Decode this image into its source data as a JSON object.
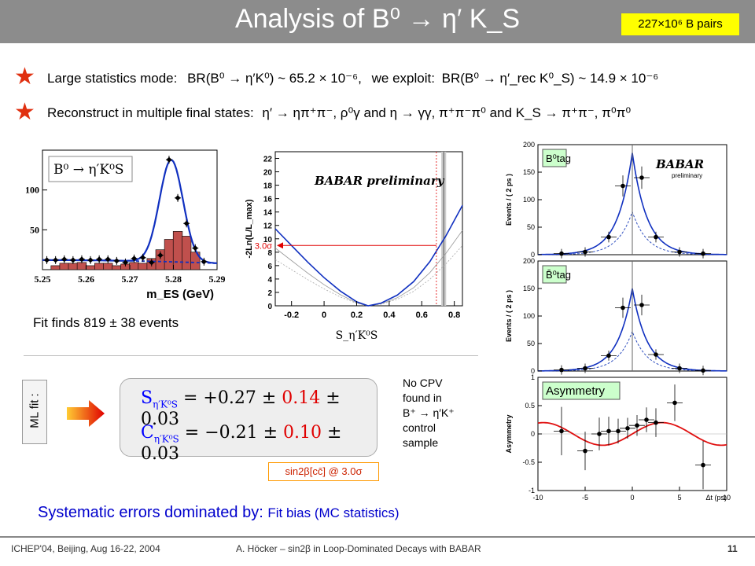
{
  "slide": {
    "title": "Analysis of B⁰ → η′ K_S",
    "badge": "227×10⁶ B pairs",
    "bullet1_label": "Large statistics mode:",
    "bullet1_formula_a": "BR(B⁰ → η′K⁰) ~ 65.2 × 10⁻⁶,",
    "bullet1_exploit": "we exploit:",
    "bullet1_formula_b": "BR(B⁰ → η′_rec K⁰_S) ~ 14.9 × 10⁻⁶",
    "bullet2_label": "Reconstruct in multiple final states:",
    "bullet2_formula": "η′ → ηπ⁺π⁻, ρ⁰γ and η → γγ, π⁺π⁻π⁰ and K_S → π⁺π⁻, π⁰π⁰",
    "fit_finds": "Fit finds 819 ± 38 events",
    "mlfit_label": "ML fit :",
    "result_S_lhs": "S",
    "result_S_sub": "η′K⁰S",
    "result_S_pre": "= +0.27 ± ",
    "result_S_stat": "0.14",
    "result_S_post": " ± 0.03",
    "result_C_lhs": "C",
    "result_C_sub": "η′K⁰S",
    "result_C_pre": "= −0.21 ± ",
    "result_C_stat": "0.10",
    "result_C_post": " ± 0.03",
    "nocpv": [
      "No CPV",
      "found in",
      "B⁺ → η′K⁺",
      "control",
      "sample"
    ],
    "sin2b_tag": "sin2β[cc̄] @ 3.0σ",
    "syst_prefix": "Systematic errors dominated by:",
    "syst_item": "Fit bias (MC statistics)",
    "footer_left": "ICHEP'04, Beijing, Aug 16-22, 2004",
    "footer_center": "A. Höcker – sin2β in Loop-Dominated Decays with BABAR",
    "footer_page": "11"
  },
  "chart_data": [
    {
      "type": "bar",
      "title": "B⁰ → η′K⁰S",
      "xlabel": "m_ES (GeV)",
      "ylabel": "",
      "xlim": [
        5.25,
        5.29
      ],
      "ylim": [
        0,
        150
      ],
      "xticks": [
        "5.25",
        "5.26",
        "5.27",
        "5.28",
        "5.29"
      ],
      "yticks": [
        "50",
        "100"
      ],
      "x": [
        5.251,
        5.253,
        5.255,
        5.257,
        5.259,
        5.261,
        5.263,
        5.265,
        5.267,
        5.269,
        5.271,
        5.273,
        5.275,
        5.277,
        5.279,
        5.281,
        5.283,
        5.285,
        5.287
      ],
      "series": [
        {
          "values": [
            12,
            12,
            13,
            12,
            13,
            12,
            13,
            13,
            11,
            9,
            14,
            15,
            9,
            18,
            138,
            90,
            58,
            27,
            10
          ]
        },
        {
          "values": [
            0,
            5,
            8,
            8,
            9,
            5,
            8,
            8,
            5,
            7,
            9,
            8,
            14,
            25,
            38,
            48,
            42,
            22,
            0
          ]
        }
      ]
    },
    {
      "type": "line",
      "title": "BABAR preliminary",
      "xlabel": "S_η′K⁰S",
      "ylabel": "-2Ln(L/L_max)",
      "xlim": [
        -0.3,
        0.85
      ],
      "ylim": [
        0,
        23
      ],
      "xticks": [
        "-0.2",
        "0",
        "0.2",
        "0.4",
        "0.6",
        "0.8"
      ],
      "yticks": [
        "0",
        "2",
        "4",
        "6",
        "8",
        "10",
        "12",
        "14",
        "16",
        "18",
        "20",
        "22"
      ],
      "annotation": "3.0σ",
      "annotation_y": 9,
      "annotation_x": 0.69,
      "series": [
        {
          "x": [
            -0.3,
            -0.2,
            -0.1,
            0.0,
            0.1,
            0.2,
            0.27,
            0.35,
            0.45,
            0.55,
            0.65,
            0.75,
            0.85
          ],
          "values": [
            11.5,
            9.0,
            6.5,
            4.2,
            2.2,
            0.6,
            0.0,
            0.4,
            1.6,
            3.6,
            6.6,
            10.5,
            15.0
          ]
        }
      ]
    },
    {
      "type": "scatter",
      "title": "B⁰tag",
      "xlabel": "",
      "ylabel": "Events / ( 2 ps )",
      "xlim": [
        -10,
        10
      ],
      "ylim": [
        0,
        200
      ],
      "yticks": [
        "0",
        "50",
        "100",
        "150",
        "200"
      ],
      "series": [
        {
          "x": [
            -7.5,
            -5,
            -2.5,
            -1,
            1,
            2.5,
            5,
            7.5
          ],
          "values": [
            2,
            5,
            32,
            125,
            140,
            32,
            5,
            2
          ]
        }
      ]
    },
    {
      "type": "scatter",
      "title": "B̄⁰tag",
      "xlabel": "",
      "ylabel": "Events / ( 2 ps )",
      "xlim": [
        -10,
        10
      ],
      "ylim": [
        0,
        200
      ],
      "yticks": [
        "0",
        "50",
        "100",
        "150",
        "200"
      ],
      "series": [
        {
          "x": [
            -7.5,
            -5,
            -2.5,
            -1,
            1,
            2.5,
            5,
            7.5
          ],
          "values": [
            2,
            5,
            28,
            115,
            120,
            30,
            5,
            1
          ]
        }
      ]
    },
    {
      "type": "scatter",
      "title": "Asymmetry",
      "xlabel": "Δt (ps)",
      "ylabel": "Asymmetry",
      "xlim": [
        -10,
        10
      ],
      "ylim": [
        -1,
        1
      ],
      "xticks": [
        "-10",
        "-5",
        "0",
        "5",
        "10"
      ],
      "yticks": [
        "-1",
        "-0.5",
        "0",
        "0.5",
        "1"
      ],
      "series": [
        {
          "x": [
            -7.5,
            -5,
            -3.5,
            -2.5,
            -1.5,
            -0.5,
            0.5,
            1.5,
            2.5,
            4.5,
            7.5
          ],
          "values": [
            0.05,
            -0.3,
            0.0,
            0.05,
            0.05,
            0.1,
            0.15,
            0.25,
            0.2,
            0.55,
            -0.55
          ]
        }
      ]
    }
  ]
}
